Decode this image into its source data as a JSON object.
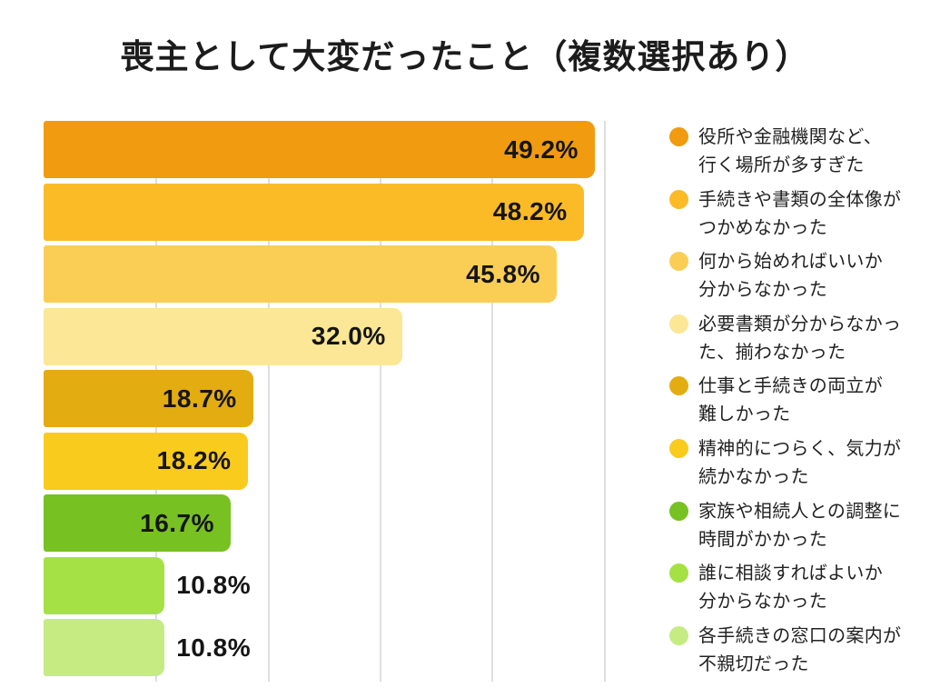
{
  "page_title": "喪主として大変だったこと（複数選択あり）",
  "chart_data": {
    "type": "bar",
    "orientation": "horizontal",
    "title": "喪主として大変だったこと（複数選択あり）",
    "categories": [
      "役所や金融機関など、行く場所が多すぎた",
      "手続きや書類の全体像がつかめなかった",
      "何から始めればいいか分からなかった",
      "必要書類が分からなかった、揃わなかった",
      "仕事と手続きの両立が難しかった",
      "精神的につらく、気力が続かなかった",
      "家族や相続人との調整に時間がかかった",
      "誰に相談すればよいか分からなかった",
      "各手続きの窓口の案内が不親切だった"
    ],
    "values": [
      49.2,
      48.2,
      45.8,
      32.0,
      18.7,
      18.2,
      16.7,
      10.8,
      10.8
    ],
    "value_labels": [
      "49.2%",
      "48.2%",
      "45.8%",
      "32.0%",
      "18.7%",
      "18.2%",
      "16.7%",
      "10.8%",
      "10.8%"
    ],
    "colors": [
      "#F09B10",
      "#FBBB27",
      "#FACD55",
      "#FBE795",
      "#E3AC10",
      "#F9CB1D",
      "#77C122",
      "#A5E144",
      "#C5EB82"
    ],
    "legend_lines": [
      [
        "役所や金融機関など、",
        "行く場所が多すぎた"
      ],
      [
        "手続きや書類の全体像が",
        "つかめなかった"
      ],
      [
        "何から始めればいいか",
        "分からなかった"
      ],
      [
        "必要書類が分からなかっ",
        "た、揃わなかった"
      ],
      [
        "仕事と手続きの両立が",
        "難しかった"
      ],
      [
        "精神的につらく、気力が",
        "続かなかった"
      ],
      [
        "家族や相続人との調整に",
        "時間がかかった"
      ],
      [
        "誰に相談すればよいか",
        "分からなかった"
      ],
      [
        "各手続きの窓口の案内が",
        "不親切だった"
      ]
    ],
    "xlim": [
      0,
      53.5
    ],
    "gridlines": [
      10,
      20,
      30,
      40,
      50
    ],
    "grid": true,
    "legend_position": "right",
    "background": "#FFFFFF",
    "gridline_color": "#DEDEDE",
    "value_label_color": "#151515"
  }
}
